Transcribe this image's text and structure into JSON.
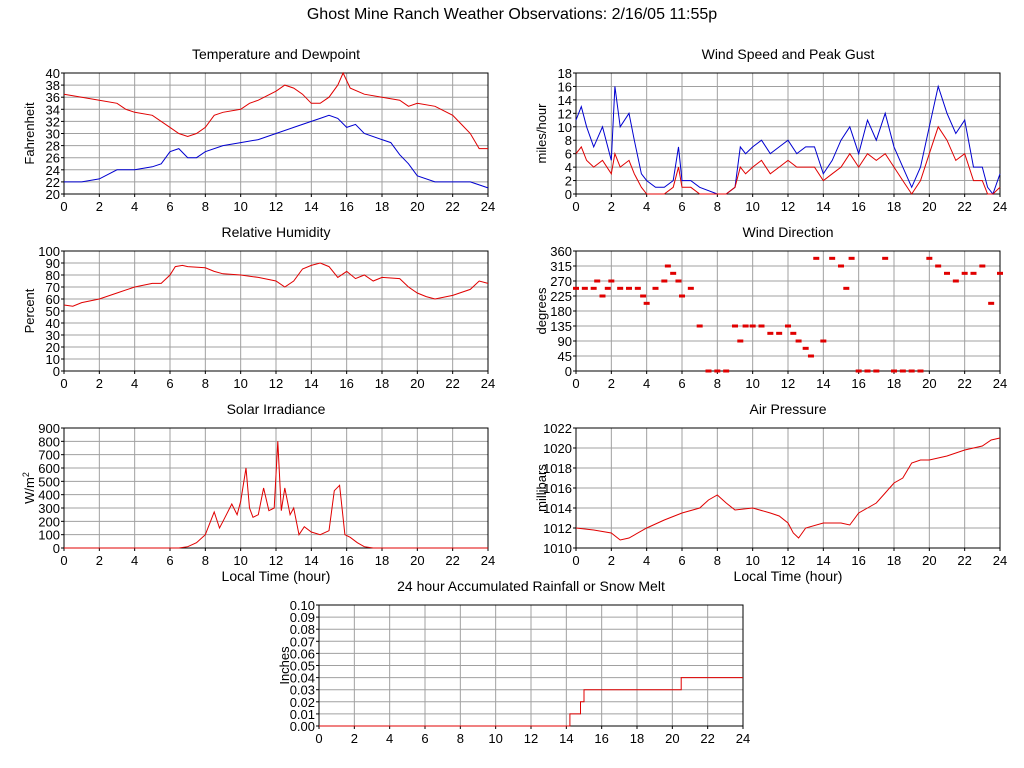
{
  "page": {
    "title": "Ghost Mine Ranch Weather Observations: 2/16/05 11:55p"
  },
  "colors": {
    "red": "#e00000",
    "blue": "#0000d0",
    "grid": "#a0a0a0"
  },
  "chart_data": [
    {
      "id": "temp",
      "type": "line",
      "title": "Temperature and Dewpoint",
      "xlabel": "",
      "ylabel": "Fahrenheit",
      "xlim": [
        0,
        24
      ],
      "ylim": [
        20,
        40
      ],
      "xticks": [
        0,
        2,
        4,
        6,
        8,
        10,
        12,
        14,
        16,
        18,
        20,
        22,
        24
      ],
      "yticks": [
        20,
        22,
        24,
        26,
        28,
        30,
        32,
        34,
        36,
        38,
        40
      ],
      "grid": true,
      "series": [
        {
          "color": "red",
          "x": [
            0,
            1,
            2,
            3,
            3.5,
            4,
            5,
            6,
            6.5,
            7,
            7.5,
            8,
            8.5,
            9,
            10,
            10.5,
            11,
            12,
            12.5,
            13,
            13.5,
            14,
            14.5,
            15,
            15.5,
            15.8,
            16.2,
            17,
            18,
            19,
            19.5,
            20,
            21,
            22,
            22.5,
            23,
            23.5,
            24
          ],
          "y": [
            36.5,
            36,
            35.5,
            35,
            34,
            33.5,
            33,
            31,
            30,
            29.5,
            30,
            31,
            33,
            33.5,
            34,
            35,
            35.5,
            37,
            38,
            37.5,
            36.5,
            35,
            35,
            36,
            38,
            40,
            37.5,
            36.5,
            36,
            35.5,
            34.5,
            35,
            34.5,
            33,
            31.5,
            30,
            27.5,
            27.5
          ]
        },
        {
          "color": "blue",
          "x": [
            0,
            1,
            2,
            3,
            4,
            5,
            5.5,
            6,
            6.5,
            7,
            7.5,
            8,
            9,
            10,
            11,
            12,
            13,
            14,
            14.5,
            15,
            15.5,
            16,
            16.5,
            17,
            18,
            18.5,
            19,
            19.5,
            20,
            21,
            22,
            23,
            23.5,
            24
          ],
          "y": [
            22,
            22,
            22.5,
            24,
            24,
            24.5,
            25,
            27,
            27.5,
            26,
            26,
            27,
            28,
            28.5,
            29,
            30,
            31,
            32,
            32.5,
            33,
            32.5,
            31,
            31.5,
            30,
            29,
            28.5,
            26.5,
            25,
            23,
            22,
            22,
            22,
            21.5,
            21
          ]
        }
      ]
    },
    {
      "id": "wind",
      "type": "line",
      "title": "Wind Speed and Peak Gust",
      "xlabel": "",
      "ylabel": "miles/hour",
      "xlim": [
        0,
        24
      ],
      "ylim": [
        0,
        18
      ],
      "xticks": [
        0,
        2,
        4,
        6,
        8,
        10,
        12,
        14,
        16,
        18,
        20,
        22,
        24
      ],
      "yticks": [
        0,
        2,
        4,
        6,
        8,
        10,
        12,
        14,
        16,
        18
      ],
      "grid": true,
      "series": [
        {
          "color": "blue",
          "x": [
            0,
            0.3,
            0.6,
            1,
            1.5,
            2,
            2.2,
            2.5,
            3,
            3.3,
            3.7,
            4,
            4.5,
            5,
            5.5,
            5.8,
            6,
            6.5,
            7,
            8,
            8.5,
            9,
            9.3,
            9.6,
            10,
            10.5,
            11,
            11.5,
            12,
            12.5,
            13,
            13.5,
            14,
            14.5,
            15,
            15.5,
            16,
            16.5,
            17,
            17.5,
            18,
            18.5,
            19,
            19.5,
            20,
            20.5,
            21,
            21.5,
            22,
            22.5,
            23,
            23.3,
            23.6,
            24
          ],
          "y": [
            11,
            13,
            10,
            7,
            10,
            5,
            16,
            10,
            12,
            8,
            3,
            2,
            1,
            1,
            2,
            7,
            2,
            2,
            1,
            0,
            0,
            1,
            7,
            6,
            7,
            8,
            6,
            7,
            8,
            6,
            7,
            7,
            3,
            5,
            8,
            10,
            6,
            11,
            8,
            12,
            7,
            4,
            1,
            4,
            10,
            16,
            12,
            9,
            11,
            4,
            4,
            1,
            0,
            3
          ]
        },
        {
          "color": "red",
          "x": [
            0,
            0.3,
            0.6,
            1,
            1.5,
            2,
            2.2,
            2.5,
            3,
            3.3,
            3.7,
            4,
            4.5,
            5,
            5.5,
            5.8,
            6,
            6.5,
            7,
            8,
            8.5,
            9,
            9.3,
            9.6,
            10,
            10.5,
            11,
            11.5,
            12,
            12.5,
            13,
            13.5,
            14,
            14.5,
            15,
            15.5,
            16,
            16.5,
            17,
            17.5,
            18,
            18.5,
            19,
            19.5,
            20,
            20.5,
            21,
            21.5,
            22,
            22.5,
            23,
            23.3,
            23.6,
            24
          ],
          "y": [
            6,
            7,
            5,
            4,
            5,
            3,
            6,
            4,
            5,
            3,
            1,
            0,
            0,
            0,
            1,
            4,
            1,
            1,
            0,
            0,
            0,
            1,
            4,
            3,
            4,
            5,
            3,
            4,
            5,
            4,
            4,
            4,
            2,
            3,
            4,
            6,
            4,
            6,
            5,
            6,
            4,
            2,
            0,
            2,
            6,
            10,
            8,
            5,
            6,
            2,
            2,
            0,
            0,
            1
          ]
        }
      ]
    },
    {
      "id": "rh",
      "type": "line",
      "title": "Relative Humidity",
      "xlabel": "",
      "ylabel": "Percent",
      "xlim": [
        0,
        24
      ],
      "ylim": [
        0,
        100
      ],
      "xticks": [
        0,
        2,
        4,
        6,
        8,
        10,
        12,
        14,
        16,
        18,
        20,
        22,
        24
      ],
      "yticks": [
        0,
        10,
        20,
        30,
        40,
        50,
        60,
        70,
        80,
        90,
        100
      ],
      "grid": true,
      "series": [
        {
          "color": "red",
          "x": [
            0,
            0.5,
            1,
            2,
            3,
            4,
            5,
            5.5,
            6,
            6.3,
            6.7,
            7,
            8,
            8.5,
            9,
            10,
            11,
            12,
            12.5,
            13,
            13.5,
            14,
            14.5,
            15,
            15.5,
            16,
            16.5,
            17,
            17.5,
            18,
            19,
            19.5,
            20,
            20.5,
            21,
            22,
            23,
            23.5,
            24
          ],
          "y": [
            55,
            54,
            57,
            60,
            65,
            70,
            73,
            73,
            80,
            87,
            88,
            87,
            86,
            83,
            81,
            80,
            78,
            75,
            70,
            75,
            85,
            88,
            90,
            87,
            78,
            83,
            77,
            80,
            75,
            78,
            77,
            70,
            65,
            62,
            60,
            63,
            68,
            75,
            73
          ]
        }
      ]
    },
    {
      "id": "winddir",
      "type": "scatter",
      "title": "Wind Direction",
      "xlabel": "",
      "ylabel": "degrees",
      "xlim": [
        0,
        24
      ],
      "ylim": [
        0,
        360
      ],
      "xticks": [
        0,
        2,
        4,
        6,
        8,
        10,
        12,
        14,
        16,
        18,
        20,
        22,
        24
      ],
      "yticks": [
        0,
        45,
        90,
        135,
        180,
        225,
        270,
        315,
        360
      ],
      "grid": true,
      "series": [
        {
          "color": "red",
          "x": [
            0,
            0.5,
            1,
            1.2,
            1.5,
            1.8,
            2,
            2.5,
            3,
            3.5,
            3.8,
            4,
            4.5,
            5,
            5.2,
            5.5,
            5.8,
            6,
            6.5,
            7,
            7.5,
            8,
            8.5,
            9,
            9.3,
            9.6,
            10,
            10.5,
            11,
            11.5,
            12,
            12.3,
            12.6,
            13,
            13.3,
            13.6,
            14,
            14.5,
            15,
            15.3,
            15.6,
            16,
            16.5,
            17,
            17.5,
            18,
            18.5,
            19,
            19.5,
            20,
            20.5,
            21,
            21.5,
            22,
            22.5,
            23,
            23.5,
            24
          ],
          "y": [
            248,
            248,
            248,
            270,
            225,
            248,
            270,
            248,
            248,
            248,
            225,
            203,
            248,
            270,
            315,
            293,
            270,
            225,
            248,
            135,
            0,
            0,
            0,
            135,
            90,
            135,
            135,
            135,
            113,
            113,
            135,
            113,
            90,
            68,
            45,
            338,
            90,
            338,
            315,
            248,
            338,
            0,
            0,
            0,
            338,
            0,
            0,
            0,
            0,
            338,
            315,
            293,
            270,
            293,
            293,
            315,
            203,
            293
          ]
        }
      ]
    },
    {
      "id": "solar",
      "type": "line",
      "title": "Solar Irradiance",
      "xlabel": "Local Time (hour)",
      "ylabel": "W/m",
      "ylabel_sup": "2",
      "xlim": [
        0,
        24
      ],
      "ylim": [
        0,
        900
      ],
      "xticks": [
        0,
        2,
        4,
        6,
        8,
        10,
        12,
        14,
        16,
        18,
        20,
        22,
        24
      ],
      "yticks": [
        0,
        100,
        200,
        300,
        400,
        500,
        600,
        700,
        800,
        900
      ],
      "grid": true,
      "series": [
        {
          "color": "red",
          "x": [
            0,
            6.5,
            7,
            7.5,
            8,
            8.5,
            8.8,
            9,
            9.5,
            9.8,
            10,
            10.3,
            10.5,
            10.7,
            11,
            11.3,
            11.6,
            11.9,
            12.1,
            12.3,
            12.5,
            12.8,
            13,
            13.3,
            13.6,
            14,
            14.5,
            15,
            15.3,
            15.6,
            15.9,
            16.2,
            16.6,
            17,
            17.5,
            18,
            24
          ],
          "y": [
            0,
            0,
            10,
            40,
            100,
            270,
            150,
            200,
            330,
            250,
            350,
            600,
            300,
            230,
            250,
            450,
            280,
            300,
            800,
            280,
            450,
            250,
            300,
            100,
            160,
            120,
            100,
            130,
            430,
            470,
            100,
            80,
            40,
            10,
            0,
            0,
            0
          ]
        }
      ]
    },
    {
      "id": "pressure",
      "type": "line",
      "title": "Air Pressure",
      "xlabel": "Local Time (hour)",
      "ylabel": "millibars",
      "xlim": [
        0,
        24
      ],
      "ylim": [
        1010,
        1022
      ],
      "xticks": [
        0,
        2,
        4,
        6,
        8,
        10,
        12,
        14,
        16,
        18,
        20,
        22,
        24
      ],
      "yticks": [
        1010,
        1012,
        1014,
        1016,
        1018,
        1020,
        1022
      ],
      "grid": true,
      "series": [
        {
          "color": "red",
          "x": [
            0,
            1,
            2,
            2.5,
            3,
            4,
            5,
            6,
            7,
            7.5,
            8,
            8.5,
            9,
            10,
            11,
            11.5,
            12,
            12.3,
            12.6,
            13,
            14,
            15,
            15.5,
            16,
            16.5,
            17,
            17.5,
            18,
            18.5,
            19,
            19.5,
            20,
            21,
            22,
            23,
            23.5,
            24
          ],
          "y": [
            1012,
            1011.8,
            1011.5,
            1010.8,
            1011,
            1012,
            1012.8,
            1013.5,
            1014,
            1014.8,
            1015.3,
            1014.5,
            1013.8,
            1014,
            1013.5,
            1013.2,
            1012.5,
            1011.5,
            1011,
            1012,
            1012.5,
            1012.5,
            1012.3,
            1013.5,
            1014,
            1014.5,
            1015.5,
            1016.5,
            1017,
            1018.5,
            1018.8,
            1018.8,
            1019.2,
            1019.8,
            1020.2,
            1020.8,
            1021
          ]
        }
      ]
    },
    {
      "id": "rain",
      "type": "line",
      "title": "24 hour Accumulated Rainfall or Snow Melt",
      "xlabel": "",
      "ylabel": "Inches",
      "xlim": [
        0,
        24
      ],
      "ylim": [
        0,
        0.1
      ],
      "xticks": [
        0,
        2,
        4,
        6,
        8,
        10,
        12,
        14,
        16,
        18,
        20,
        22,
        24
      ],
      "yticks": [
        0.0,
        0.01,
        0.02,
        0.03,
        0.04,
        0.05,
        0.06,
        0.07,
        0.08,
        0.09,
        0.1
      ],
      "grid": true,
      "series": [
        {
          "color": "red",
          "x": [
            0,
            14.2,
            14.2,
            14.8,
            14.8,
            15,
            15,
            20.5,
            20.5,
            24
          ],
          "y": [
            0,
            0,
            0.01,
            0.01,
            0.02,
            0.02,
            0.03,
            0.03,
            0.04,
            0.04
          ]
        }
      ]
    }
  ]
}
